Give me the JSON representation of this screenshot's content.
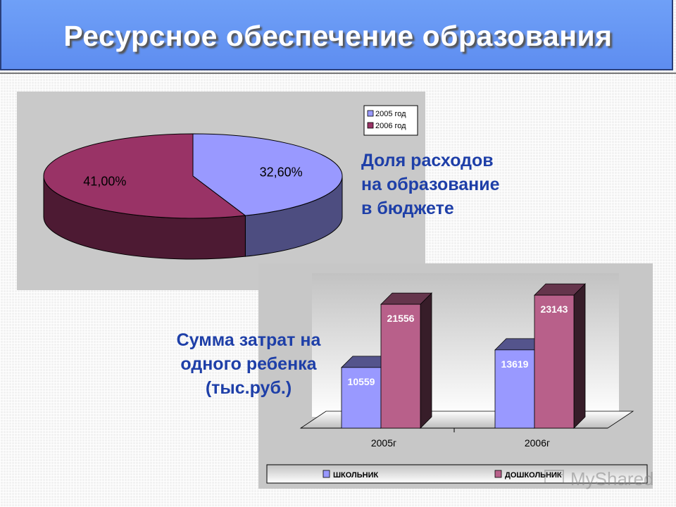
{
  "slide": {
    "title": "Ресурсное обеспечение образования",
    "caption_pie": [
      "Доля расходов",
      "на образование",
      "в бюджете"
    ],
    "caption_bar": [
      "Сумма затрат на",
      "одного ребенка",
      "(тыс.руб.)"
    ],
    "watermark": "MyShared"
  },
  "chart_data": [
    {
      "type": "pie",
      "categories": [
        "2005 год",
        "2006 год"
      ],
      "values": [
        32.6,
        41.0
      ],
      "data_labels": [
        "32,60%",
        "41,00%"
      ],
      "colors": [
        "#9999ff",
        "#993366"
      ],
      "legend": "top-right"
    },
    {
      "type": "bar",
      "categories": [
        "2005г",
        "2006г"
      ],
      "series": [
        {
          "name": "ШКОЛЬНИК",
          "values": [
            10559,
            13619
          ],
          "labels": [
            "10559",
            "13619"
          ],
          "color": "#9999ff"
        },
        {
          "name": "ДОШКОЛЬНИК",
          "values": [
            21556,
            23143
          ],
          "labels": [
            "21556",
            "23143"
          ],
          "color": "#b8608a"
        }
      ],
      "ylim": [
        0,
        25000
      ],
      "legend": "bottom"
    }
  ]
}
